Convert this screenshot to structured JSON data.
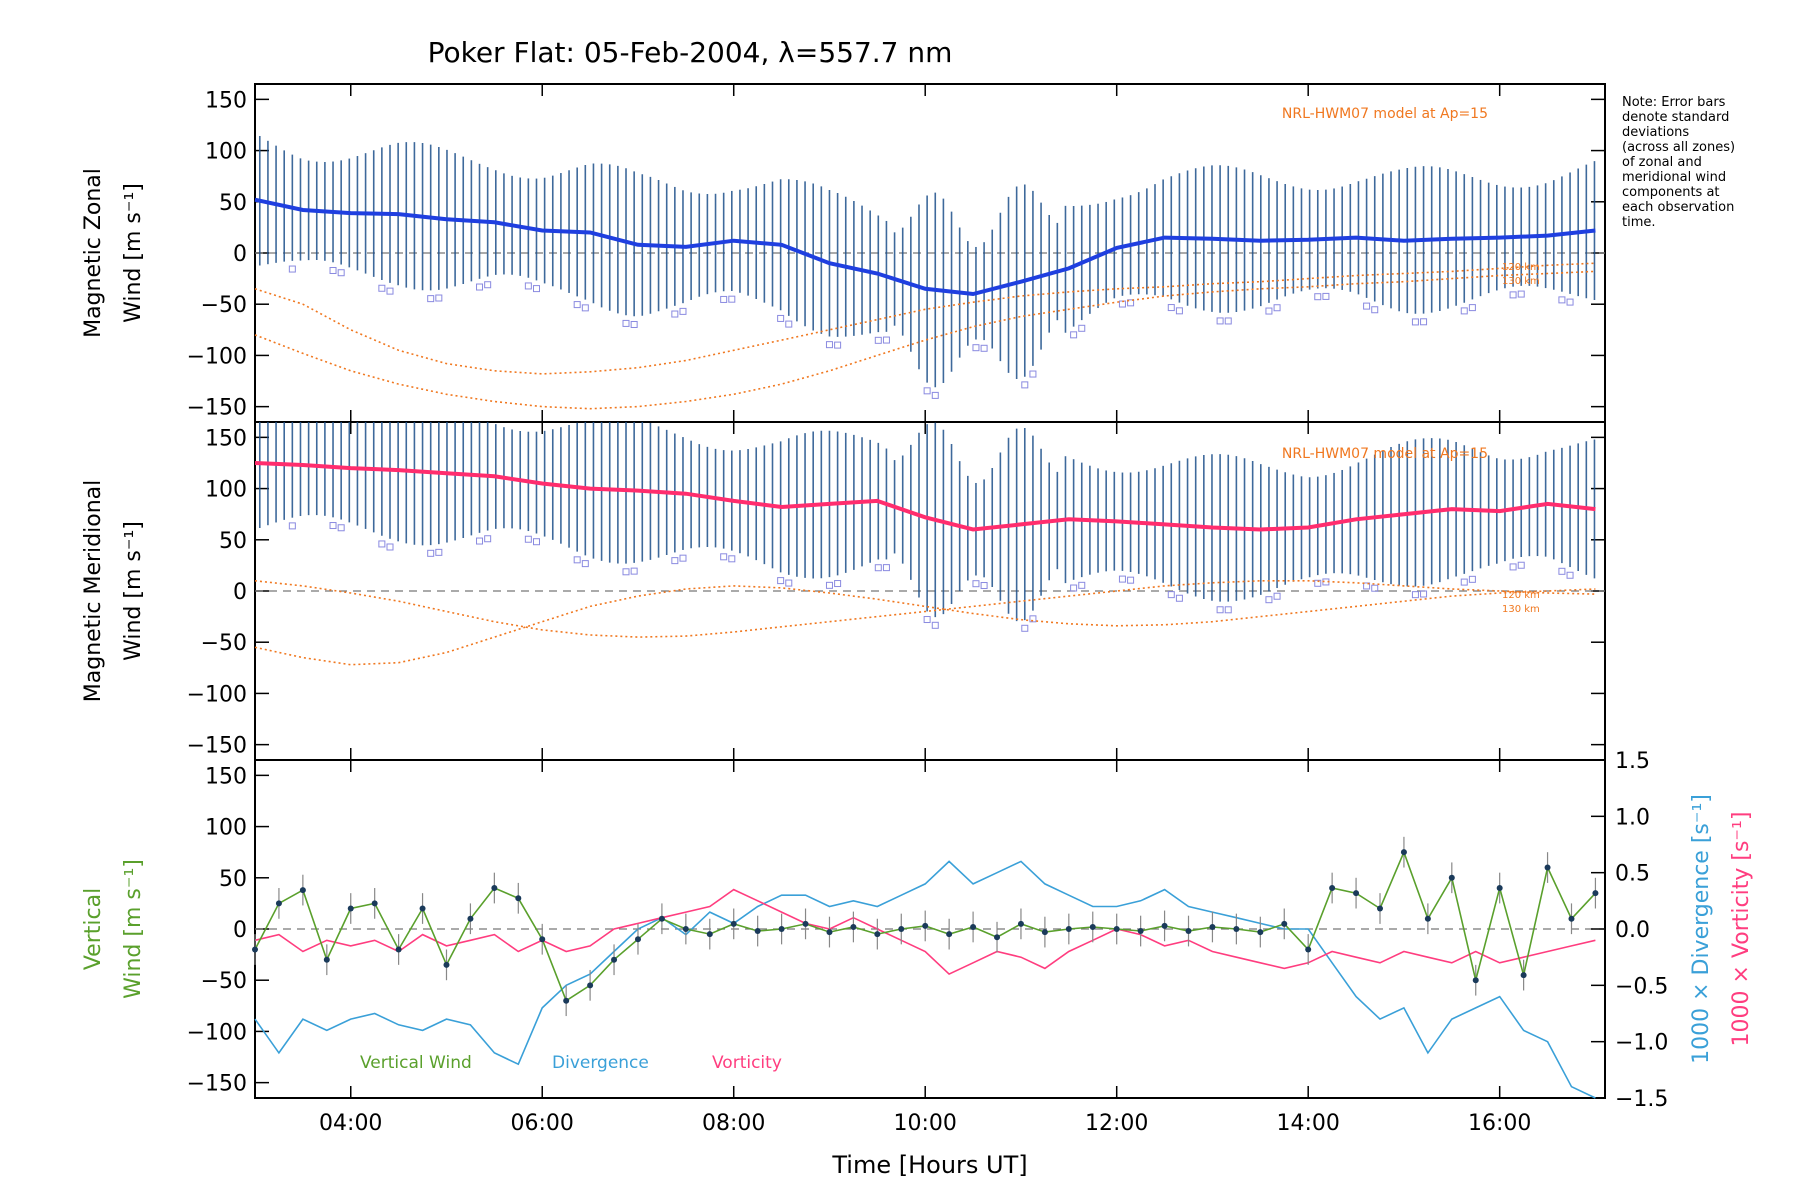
{
  "title": "Poker Flat: 05-Feb-2004, λ=557.7 nm",
  "xlabel": "Time [Hours UT]",
  "xticks": [
    "04:00",
    "06:00",
    "08:00",
    "10:00",
    "12:00",
    "14:00",
    "16:00"
  ],
  "note": [
    "Note: Error bars",
    "denote standard",
    "deviations",
    "(across all zones)",
    "of zonal and",
    "meridional wind",
    "components at",
    "each observation",
    "time."
  ],
  "colors": {
    "zonal": "#1f3fe0",
    "zonal_light": "#4aa8e8",
    "meridional": "#ff2d6e",
    "vertical": "#5aa02c",
    "divergence": "#3aa0d8",
    "vorticity": "#ff3d7f",
    "model": "#f07820",
    "errorbar": "#1d4f8a",
    "scatter": "#8a8ae0"
  },
  "chart_data": [
    {
      "type": "line",
      "panel": "zonal",
      "ylabel_line1": "Magnetic Zonal",
      "ylabel_line2": "Wind [m s⁻¹]",
      "ylim": [
        -165,
        165
      ],
      "yticks": [
        "150",
        "100",
        "50",
        "0",
        "−50",
        "−100",
        "−150"
      ],
      "model_label": "NRL-HWM07 model at Ap=15",
      "alt_labels": [
        "120 km",
        "130 km"
      ],
      "x": [
        3.0,
        3.5,
        4.0,
        4.5,
        5.0,
        5.5,
        6.0,
        6.5,
        7.0,
        7.5,
        8.0,
        8.5,
        9.0,
        9.5,
        10.0,
        10.5,
        11.0,
        11.5,
        12.0,
        12.5,
        13.0,
        13.5,
        14.0,
        14.5,
        15.0,
        15.5,
        16.0,
        16.5,
        17.0
      ],
      "series": [
        {
          "name": "Magnetic Zonal Wind",
          "values": [
            52,
            42,
            39,
            38,
            33,
            30,
            22,
            20,
            8,
            6,
            12,
            8,
            -10,
            -20,
            -35,
            -40,
            -28,
            -15,
            5,
            15,
            14,
            12,
            13,
            15,
            12,
            14,
            15,
            17,
            22
          ]
        },
        {
          "name": "HWM07 120 km",
          "values": [
            -35,
            -50,
            -75,
            -95,
            -108,
            -115,
            -118,
            -116,
            -112,
            -105,
            -95,
            -85,
            -75,
            -65,
            -55,
            -48,
            -42,
            -38,
            -35,
            -33,
            -30,
            -28,
            -25,
            -22,
            -20,
            -18,
            -15,
            -12,
            -10
          ]
        },
        {
          "name": "HWM07 130 km",
          "values": [
            -80,
            -98,
            -115,
            -128,
            -138,
            -145,
            -150,
            -152,
            -150,
            -145,
            -138,
            -128,
            -115,
            -100,
            -85,
            -72,
            -62,
            -55,
            -48,
            -42,
            -38,
            -35,
            -33,
            -30,
            -28,
            -25,
            -22,
            -20,
            -18
          ]
        }
      ]
    },
    {
      "type": "line",
      "panel": "meridional",
      "ylabel_line1": "Magnetic Meridional",
      "ylabel_line2": "Wind [m s⁻¹]",
      "ylim": [
        -165,
        165
      ],
      "yticks": [
        "150",
        "100",
        "50",
        "0",
        "−50",
        "−100",
        "−150"
      ],
      "model_label": "NRL-HWM07 model at Ap=15",
      "alt_labels": [
        "120 km",
        "130 km"
      ],
      "x": [
        3.0,
        3.5,
        4.0,
        4.5,
        5.0,
        5.5,
        6.0,
        6.5,
        7.0,
        7.5,
        8.0,
        8.5,
        9.0,
        9.5,
        10.0,
        10.5,
        11.0,
        11.5,
        12.0,
        12.5,
        13.0,
        13.5,
        14.0,
        14.5,
        15.0,
        15.5,
        16.0,
        16.5,
        17.0
      ],
      "series": [
        {
          "name": "Magnetic Meridional Wind",
          "values": [
            125,
            123,
            120,
            118,
            115,
            112,
            105,
            100,
            98,
            95,
            88,
            82,
            85,
            88,
            72,
            60,
            65,
            70,
            68,
            65,
            62,
            60,
            62,
            70,
            75,
            80,
            78,
            85,
            80
          ]
        },
        {
          "name": "HWM07 120 km",
          "values": [
            -55,
            -65,
            -72,
            -70,
            -60,
            -45,
            -30,
            -15,
            -5,
            2,
            5,
            3,
            -2,
            -8,
            -15,
            -22,
            -28,
            -32,
            -34,
            -33,
            -30,
            -25,
            -20,
            -15,
            -10,
            -5,
            -2,
            0,
            2
          ]
        },
        {
          "name": "HWM07 130 km",
          "values": [
            10,
            5,
            -2,
            -10,
            -20,
            -30,
            -38,
            -43,
            -45,
            -44,
            -40,
            -35,
            -30,
            -25,
            -20,
            -15,
            -10,
            -5,
            0,
            5,
            8,
            10,
            10,
            8,
            5,
            2,
            0,
            -2,
            -3
          ]
        }
      ]
    },
    {
      "type": "line",
      "panel": "vertical",
      "ylabel_line1": "Vertical",
      "ylabel_line2": "Wind [m s⁻¹]",
      "ylim": [
        -165,
        165
      ],
      "yticks": [
        "150",
        "100",
        "50",
        "0",
        "−50",
        "−100",
        "−150"
      ],
      "y2label_div": "1000 × Divergence [s⁻¹]",
      "y2label_vort": "1000 × Vorticity [s⁻¹]",
      "y2lim": [
        -1.5,
        1.5
      ],
      "y2ticks": [
        "1.5",
        "1.0",
        "0.5",
        "0.0",
        "−0.5",
        "−1.0",
        "−1.5"
      ],
      "legend": [
        "Vertical Wind",
        "Divergence",
        "Vorticity"
      ],
      "x": [
        3.0,
        3.25,
        3.5,
        3.75,
        4.0,
        4.25,
        4.5,
        4.75,
        5.0,
        5.25,
        5.5,
        5.75,
        6.0,
        6.25,
        6.5,
        6.75,
        7.0,
        7.25,
        7.5,
        7.75,
        8.0,
        8.25,
        8.5,
        8.75,
        9.0,
        9.25,
        9.5,
        9.75,
        10.0,
        10.25,
        10.5,
        10.75,
        11.0,
        11.25,
        11.5,
        11.75,
        12.0,
        12.25,
        12.5,
        12.75,
        13.0,
        13.25,
        13.5,
        13.75,
        14.0,
        14.25,
        14.5,
        14.75,
        15.0,
        15.25,
        15.5,
        15.75,
        16.0,
        16.25,
        16.5,
        16.75,
        17.0
      ],
      "series": [
        {
          "name": "Vertical Wind",
          "axis": "left",
          "values": [
            -20,
            25,
            38,
            -30,
            20,
            25,
            -20,
            20,
            -35,
            10,
            40,
            30,
            -10,
            -70,
            -55,
            -30,
            -10,
            10,
            0,
            -5,
            5,
            -2,
            0,
            5,
            -3,
            2,
            -5,
            0,
            3,
            -5,
            2,
            -8,
            5,
            -3,
            0,
            2,
            0,
            -2,
            3,
            -2,
            2,
            0,
            -3,
            5,
            -20,
            40,
            35,
            20,
            75,
            10,
            50,
            -50,
            40,
            -45,
            60,
            10,
            35
          ]
        },
        {
          "name": "Divergence",
          "axis": "right",
          "values": [
            -0.8,
            -1.1,
            -0.8,
            -0.9,
            -0.8,
            -0.75,
            -0.85,
            -0.9,
            -0.8,
            -0.85,
            -1.1,
            -1.2,
            -0.7,
            -0.5,
            -0.4,
            -0.2,
            0.0,
            0.1,
            -0.05,
            0.15,
            0.05,
            0.2,
            0.3,
            0.3,
            0.2,
            0.25,
            0.2,
            0.3,
            0.4,
            0.6,
            0.4,
            0.5,
            0.6,
            0.4,
            0.3,
            0.2,
            0.2,
            0.25,
            0.35,
            0.2,
            0.15,
            0.1,
            0.05,
            0.0,
            0.0,
            -0.3,
            -0.6,
            -0.8,
            -0.7,
            -1.1,
            -0.8,
            -0.7,
            -0.6,
            -0.9,
            -1.0,
            -1.4,
            -1.5
          ]
        },
        {
          "name": "Vorticity",
          "axis": "right",
          "values": [
            -0.1,
            -0.05,
            -0.2,
            -0.1,
            -0.15,
            -0.1,
            -0.2,
            -0.05,
            -0.15,
            -0.1,
            -0.05,
            -0.2,
            -0.1,
            -0.2,
            -0.15,
            0.0,
            0.05,
            0.1,
            0.15,
            0.2,
            0.35,
            0.25,
            0.15,
            0.05,
            0.0,
            0.1,
            0.0,
            -0.1,
            -0.2,
            -0.4,
            -0.3,
            -0.2,
            -0.25,
            -0.35,
            -0.2,
            -0.1,
            0.0,
            -0.05,
            -0.15,
            -0.1,
            -0.2,
            -0.25,
            -0.3,
            -0.35,
            -0.3,
            -0.2,
            -0.25,
            -0.3,
            -0.2,
            -0.25,
            -0.3,
            -0.2,
            -0.3,
            -0.25,
            -0.2,
            -0.15,
            -0.1
          ]
        }
      ]
    }
  ]
}
